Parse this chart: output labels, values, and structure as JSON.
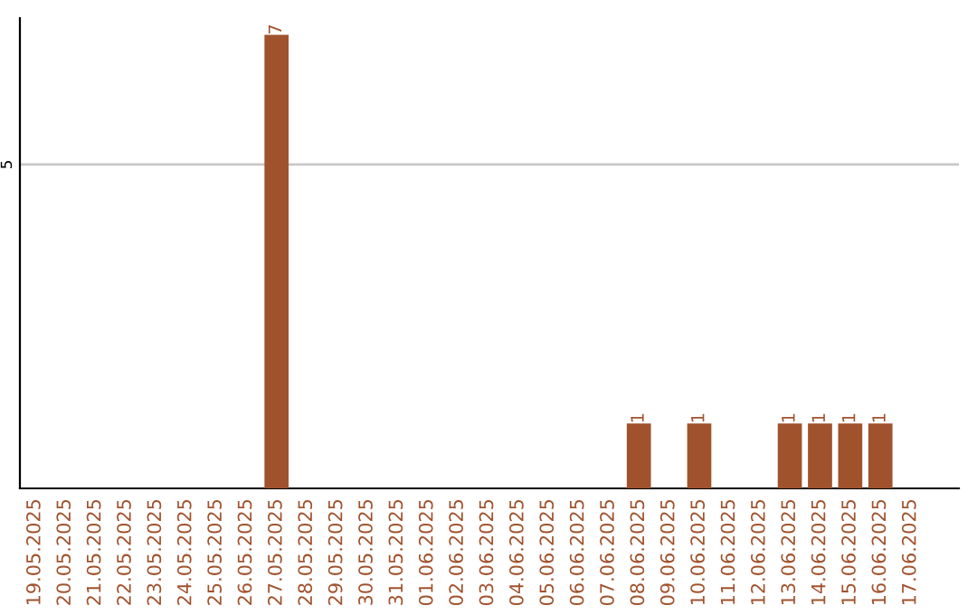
{
  "chart_data": {
    "type": "bar",
    "categories": [
      "19.05.2025",
      "20.05.2025",
      "21.05.2025",
      "22.05.2025",
      "23.05.2025",
      "24.05.2025",
      "25.05.2025",
      "26.05.2025",
      "27.05.2025",
      "28.05.2025",
      "29.05.2025",
      "30.05.2025",
      "31.05.2025",
      "01.06.2025",
      "02.06.2025",
      "03.06.2025",
      "04.06.2025",
      "05.06.2025",
      "06.06.2025",
      "07.06.2025",
      "08.06.2025",
      "09.06.2025",
      "10.06.2025",
      "11.06.2025",
      "12.06.2025",
      "13.06.2025",
      "14.06.2025",
      "15.06.2025",
      "16.06.2025",
      "17.06.2025"
    ],
    "values": [
      0,
      0,
      0,
      0,
      0,
      0,
      0,
      0,
      7,
      0,
      0,
      0,
      0,
      0,
      0,
      0,
      0,
      0,
      0,
      0,
      1,
      0,
      1,
      0,
      0,
      1,
      1,
      1,
      1,
      0
    ],
    "value_labels": [
      null,
      null,
      null,
      null,
      null,
      null,
      null,
      null,
      "7",
      null,
      null,
      null,
      null,
      null,
      null,
      null,
      null,
      null,
      null,
      null,
      "1",
      null,
      "1",
      null,
      null,
      "1",
      "1",
      "1",
      "1",
      null
    ],
    "color": "#a0522d",
    "ylim": [
      0,
      7.26
    ],
    "yticks": [
      5
    ],
    "grid": "y"
  }
}
